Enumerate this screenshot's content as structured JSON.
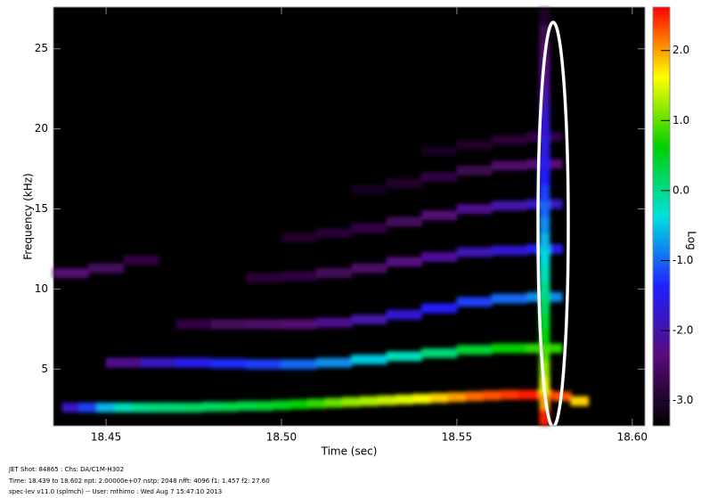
{
  "chart_data": {
    "type": "spectrogram",
    "xlabel": "Time (sec)",
    "ylabel": "Frequency (kHz)",
    "colorbar_label": "Log",
    "xlim": [
      18.435,
      18.6036
    ],
    "ylim": [
      1.457,
      27.6
    ],
    "xticks": [
      {
        "value": 18.45,
        "label": "18.45"
      },
      {
        "value": 18.5,
        "label": "18.50"
      },
      {
        "value": 18.55,
        "label": "18.55"
      },
      {
        "value": 18.6,
        "label": "18.60"
      }
    ],
    "yticks": [
      5,
      10,
      15,
      20,
      25
    ],
    "clim": [
      -3.36,
      2.62
    ],
    "cticks": [
      {
        "value": 2,
        "label": "2.0"
      },
      {
        "value": 1,
        "label": "1.0"
      },
      {
        "value": 0,
        "label": "0.0"
      },
      {
        "value": -1,
        "label": "-1.0"
      },
      {
        "value": -2,
        "label": "-2.0"
      },
      {
        "value": -3,
        "label": "-3.0"
      }
    ],
    "colormap": [
      "#000000",
      "#5a0a7a",
      "#2020ff",
      "#00e0e0",
      "#00d000",
      "#ffff00",
      "#ff0000"
    ],
    "series": [
      {
        "x": [
          18.44,
          18.445,
          18.45,
          18.455,
          18.46,
          18.465,
          18.47,
          18.475,
          18.48,
          18.485,
          18.49,
          18.495,
          18.5,
          18.505,
          18.51,
          18.515,
          18.52,
          18.525,
          18.53,
          18.535,
          18.54,
          18.545,
          18.55,
          18.555,
          18.56,
          18.565,
          18.57,
          18.575,
          18.58,
          18.585
        ],
        "values": [
          2.6,
          2.6,
          2.6,
          2.6,
          2.6,
          2.6,
          2.6,
          2.6,
          2.65,
          2.65,
          2.7,
          2.7,
          2.75,
          2.8,
          2.85,
          2.9,
          2.95,
          3.0,
          3.05,
          3.1,
          3.15,
          3.2,
          3.25,
          3.3,
          3.35,
          3.4,
          3.4,
          3.4,
          3.3,
          3.0
        ],
        "level": [
          -1.8,
          -1.2,
          -0.6,
          -0.2,
          0.0,
          0.1,
          0.1,
          0.2,
          0.2,
          0.3,
          0.3,
          0.4,
          0.5,
          0.6,
          0.8,
          1.0,
          1.2,
          1.3,
          1.4,
          1.5,
          1.6,
          1.8,
          2.0,
          2.2,
          2.3,
          2.4,
          2.5,
          2.5,
          2.3,
          1.8
        ]
      },
      {
        "x": [
          18.455,
          18.465,
          18.475,
          18.485,
          18.495,
          18.505,
          18.515,
          18.525,
          18.535,
          18.545,
          18.555,
          18.565,
          18.575
        ],
        "values": [
          5.4,
          5.4,
          5.4,
          5.35,
          5.3,
          5.3,
          5.4,
          5.6,
          5.8,
          6.0,
          6.2,
          6.3,
          6.3
        ],
        "level": [
          -2.2,
          -1.8,
          -1.5,
          -1.3,
          -1.2,
          -1.0,
          -0.8,
          -0.5,
          -0.2,
          0.1,
          0.4,
          0.6,
          0.8
        ]
      },
      {
        "x": [
          18.475,
          18.485,
          18.495,
          18.505,
          18.515,
          18.525,
          18.535,
          18.545,
          18.555,
          18.565,
          18.575
        ],
        "values": [
          7.8,
          7.8,
          7.8,
          7.8,
          7.9,
          8.1,
          8.4,
          8.8,
          9.2,
          9.4,
          9.5
        ],
        "level": [
          -2.8,
          -2.6,
          -2.5,
          -2.4,
          -2.2,
          -2.0,
          -1.7,
          -1.4,
          -1.2,
          -1.0,
          -0.8
        ]
      },
      {
        "x": [
          18.495,
          18.505,
          18.515,
          18.525,
          18.535,
          18.545,
          18.555,
          18.565,
          18.575
        ],
        "values": [
          10.7,
          10.8,
          11.0,
          11.3,
          11.7,
          12.0,
          12.3,
          12.4,
          12.5
        ],
        "level": [
          -2.9,
          -2.8,
          -2.6,
          -2.5,
          -2.3,
          -2.1,
          -1.9,
          -1.7,
          -1.5
        ]
      },
      {
        "x": [
          18.505,
          18.515,
          18.525,
          18.535,
          18.545,
          18.555,
          18.565,
          18.575
        ],
        "values": [
          13.2,
          13.5,
          13.8,
          14.2,
          14.6,
          15.0,
          15.2,
          15.3
        ],
        "level": [
          -3.0,
          -2.9,
          -2.8,
          -2.6,
          -2.4,
          -2.2,
          -2.0,
          -1.8
        ]
      },
      {
        "x": [
          18.525,
          18.535,
          18.545,
          18.555,
          18.565,
          18.575
        ],
        "values": [
          16.2,
          16.6,
          17.0,
          17.4,
          17.7,
          17.8
        ],
        "level": [
          -3.1,
          -3.0,
          -2.8,
          -2.7,
          -2.5,
          -2.4
        ]
      },
      {
        "x": [
          18.545,
          18.555,
          18.565,
          18.575
        ],
        "values": [
          18.6,
          19.0,
          19.3,
          19.5
        ],
        "level": [
          -3.1,
          -3.0,
          -2.9,
          -2.8
        ]
      },
      {
        "x": [
          18.44,
          18.45,
          18.46
        ],
        "values": [
          11.0,
          11.3,
          11.8
        ],
        "level": [
          -2.4,
          -2.6,
          -2.8
        ]
      },
      {
        "x": [
          18.575,
          18.575,
          18.575,
          18.575,
          18.575,
          18.575,
          18.575,
          18.575,
          18.575,
          18.575,
          18.575,
          18.575,
          18.575,
          18.575,
          18.575,
          18.575,
          18.575,
          18.575,
          18.575,
          18.575,
          18.575,
          18.575,
          18.575,
          18.575,
          18.575,
          18.575
        ],
        "values": [
          2,
          3,
          4,
          5,
          6,
          7,
          8,
          9,
          10,
          11,
          12,
          13,
          14,
          15,
          16,
          17,
          18,
          19,
          20,
          21,
          22,
          23,
          24,
          25,
          26,
          27
        ],
        "level": [
          2.5,
          2.0,
          1.5,
          1.2,
          0.9,
          0.6,
          0.4,
          0.2,
          0.0,
          -0.2,
          -0.4,
          -0.6,
          -0.8,
          -1.0,
          -1.2,
          -1.4,
          -1.5,
          -1.6,
          -1.7,
          -1.8,
          -2.0,
          -2.2,
          -2.3,
          -2.5,
          -2.7,
          -3.0
        ]
      }
    ],
    "footer": [
      "JET Shot: 84865 :     Chs: DA/C1M-H302",
      "Time: 18.439 to 18.602   npt: 2.00000e+07   nstp: 2048   nfft: 4096   f1: 1.457   f2: 27.60",
      "spec-lev v11.0 (splmch) -- User: mthimo : Wed Aug  7 15:47:10 2013"
    ]
  }
}
